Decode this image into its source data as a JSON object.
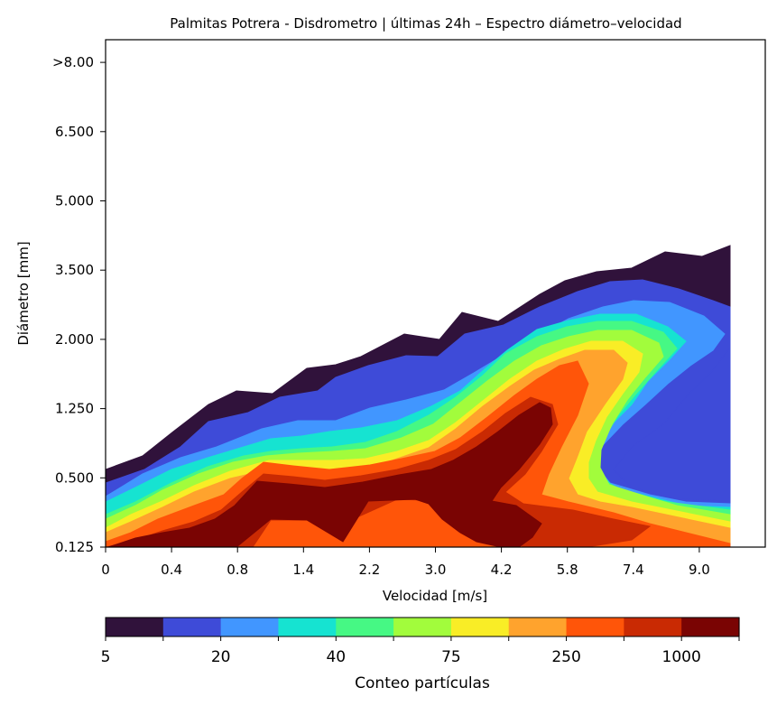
{
  "chart_data": {
    "type": "heatmap",
    "title": "Palmitas Potrera - Disdrometro | últimas 24h – Espectro diámetro–velocidad",
    "xlabel": "Velocidad [m/s]",
    "ylabel": "Diámetro [mm]",
    "x_ticks": [
      "0",
      "0.4",
      "0.8",
      "1.4",
      "2.2",
      "3.0",
      "4.2",
      "5.8",
      "7.4",
      "9.0"
    ],
    "y_ticks": [
      "0.125",
      "0.500",
      "1.250",
      "2.000",
      "3.500",
      "5.000",
      "6.500",
      ">8.00"
    ],
    "grid": false,
    "fill_levels": [
      {
        "color": "#30123b",
        "name": "5–10"
      },
      {
        "color": "#3e4bd8",
        "name": "10–20"
      },
      {
        "color": "#4196ff",
        "name": "20–30"
      },
      {
        "color": "#16e3d1",
        "name": "30–40"
      },
      {
        "color": "#46f884",
        "name": "40–60"
      },
      {
        "color": "#a2fc3c",
        "name": "60–75"
      },
      {
        "color": "#f9ed26",
        "name": "75–150"
      },
      {
        "color": "#ffa32d",
        "name": "150–250"
      },
      {
        "color": "#ff5509",
        "name": "250–500"
      },
      {
        "color": "#c92a03",
        "name": "500–1000"
      },
      {
        "color": "#7a0403",
        "name": ">1000"
      }
    ],
    "colorbar": {
      "label": "Conteo partículas",
      "tick_labels": [
        "5",
        "20",
        "40",
        "75",
        "250",
        "1000"
      ]
    }
  }
}
